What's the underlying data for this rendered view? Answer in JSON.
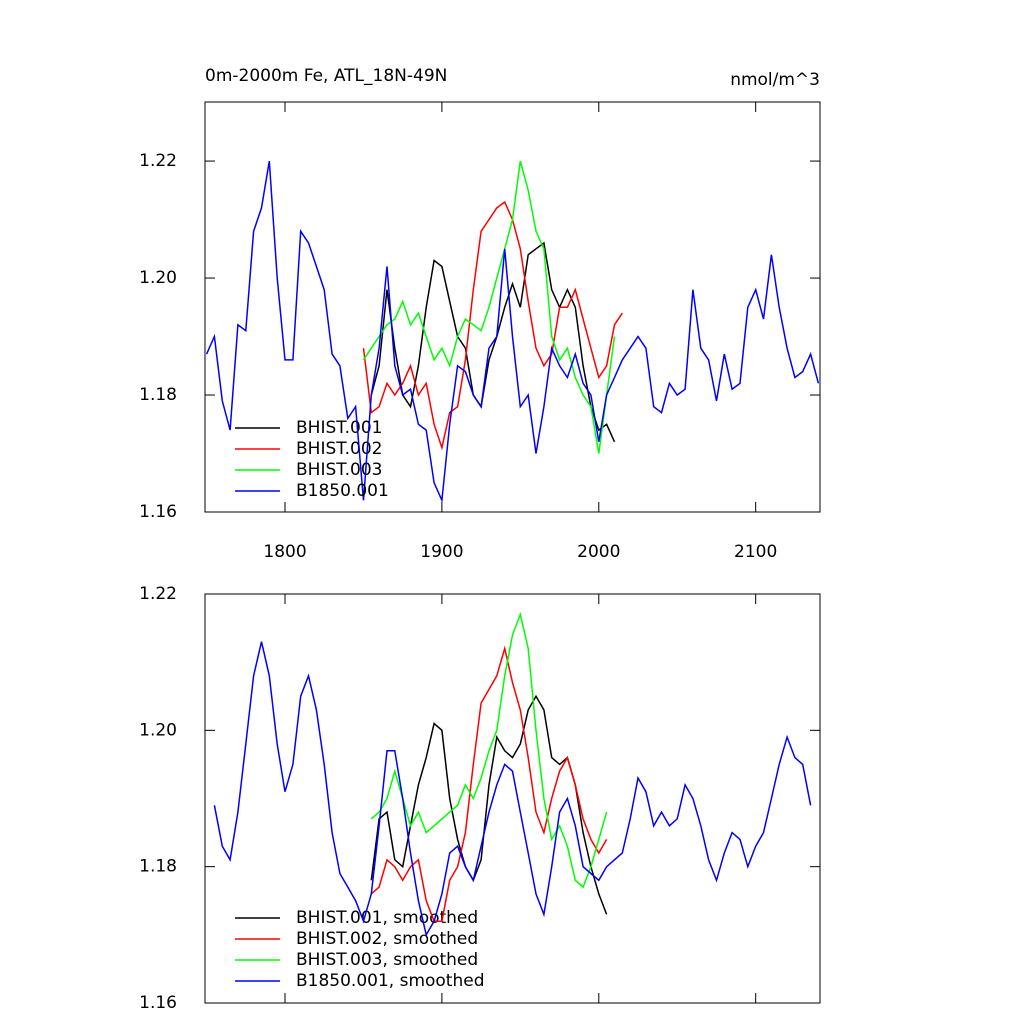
{
  "chart_data": [
    {
      "type": "line",
      "title": "0m-2000m Fe, ATL_18N-49N",
      "units": "nmol/m^3",
      "x": [
        1750,
        1755,
        1760,
        1765,
        1770,
        1775,
        1780,
        1785,
        1790,
        1795,
        1800,
        1805,
        1810,
        1815,
        1820,
        1825,
        1830,
        1835,
        1840,
        1845,
        1850,
        1855,
        1860,
        1865,
        1870,
        1875,
        1880,
        1885,
        1890,
        1895,
        1900,
        1905,
        1910,
        1915,
        1920,
        1925,
        1930,
        1935,
        1940,
        1945,
        1950,
        1955,
        1960,
        1965,
        1970,
        1975,
        1980,
        1985,
        1990,
        1995,
        2000,
        2005,
        2010,
        2015,
        2020,
        2025,
        2030,
        2035,
        2040,
        2045,
        2050,
        2055,
        2060,
        2065,
        2070,
        2075,
        2080,
        2085,
        2090,
        2095,
        2100,
        2105,
        2110,
        2115,
        2120,
        2125,
        2130,
        2135,
        2140
      ],
      "series": [
        {
          "name": "BHIST.001",
          "color": "#000000",
          "values": [
            null,
            null,
            null,
            null,
            null,
            null,
            null,
            null,
            null,
            null,
            null,
            null,
            null,
            null,
            null,
            null,
            null,
            null,
            null,
            null,
            null,
            1.18,
            1.185,
            1.198,
            1.188,
            1.18,
            1.178,
            1.185,
            1.195,
            1.203,
            1.202,
            1.196,
            1.19,
            1.188,
            1.18,
            1.178,
            1.186,
            1.19,
            1.195,
            1.199,
            1.195,
            1.204,
            1.205,
            1.206,
            1.198,
            1.195,
            1.198,
            1.195,
            1.185,
            1.178,
            1.174,
            1.175,
            1.172,
            null,
            null,
            null,
            null,
            null,
            null,
            null,
            null,
            null,
            null,
            null,
            null,
            null,
            null,
            null,
            null,
            null,
            null,
            null,
            null,
            null,
            null,
            null,
            null,
            null,
            null
          ]
        },
        {
          "name": "BHIST.002",
          "color": "#ff0000",
          "values": [
            null,
            null,
            null,
            null,
            null,
            null,
            null,
            null,
            null,
            null,
            null,
            null,
            null,
            null,
            null,
            null,
            null,
            null,
            null,
            null,
            1.188,
            1.177,
            1.178,
            1.182,
            1.18,
            1.182,
            1.185,
            1.18,
            1.182,
            1.175,
            1.171,
            1.177,
            1.178,
            1.186,
            1.198,
            1.208,
            1.21,
            1.212,
            1.213,
            1.21,
            1.205,
            1.196,
            1.188,
            1.185,
            1.187,
            1.195,
            1.195,
            1.198,
            1.193,
            1.188,
            1.183,
            1.185,
            1.192,
            1.194,
            null,
            null,
            null,
            null,
            null,
            null,
            null,
            null,
            null,
            null,
            null,
            null,
            null,
            null,
            null,
            null,
            null,
            null,
            null,
            null,
            null,
            null,
            null,
            null,
            null
          ]
        },
        {
          "name": "BHIST.003",
          "color": "#00ff00",
          "values": [
            null,
            null,
            null,
            null,
            null,
            null,
            null,
            null,
            null,
            null,
            null,
            null,
            null,
            null,
            null,
            null,
            null,
            null,
            null,
            null,
            1.186,
            1.188,
            1.19,
            1.192,
            1.193,
            1.196,
            1.192,
            1.194,
            1.19,
            1.186,
            1.188,
            1.185,
            1.19,
            1.193,
            1.192,
            1.191,
            1.195,
            1.2,
            1.205,
            1.21,
            1.22,
            1.215,
            1.208,
            1.205,
            1.19,
            1.186,
            1.188,
            1.183,
            1.18,
            1.178,
            1.17,
            1.18,
            1.19,
            null,
            null,
            null,
            null,
            null,
            null,
            null,
            null,
            null,
            null,
            null,
            null,
            null,
            null,
            null,
            null,
            null,
            null,
            null,
            null,
            null,
            null,
            null,
            null,
            null,
            null
          ]
        },
        {
          "name": "B1850.001",
          "color": "#0000ff",
          "values": [
            1.187,
            1.19,
            1.179,
            1.174,
            1.192,
            1.191,
            1.208,
            1.212,
            1.22,
            1.2,
            1.186,
            1.186,
            1.208,
            1.206,
            1.202,
            1.198,
            1.187,
            1.185,
            1.176,
            1.178,
            1.162,
            1.18,
            1.188,
            1.202,
            1.185,
            1.18,
            1.181,
            1.175,
            1.174,
            1.165,
            1.162,
            1.175,
            1.185,
            1.184,
            1.18,
            1.178,
            1.188,
            1.19,
            1.205,
            1.19,
            1.178,
            1.18,
            1.17,
            1.178,
            1.188,
            1.185,
            1.183,
            1.187,
            1.182,
            1.18,
            1.172,
            1.18,
            1.183,
            1.186,
            1.188,
            1.19,
            1.188,
            1.178,
            1.177,
            1.182,
            1.18,
            1.181,
            1.198,
            1.188,
            1.186,
            1.179,
            1.187,
            1.181,
            1.182,
            1.195,
            1.198,
            1.193,
            1.204,
            1.195,
            1.188,
            1.183,
            1.184,
            1.187,
            1.182
          ]
        }
      ],
      "xlim": [
        1749,
        2141
      ],
      "ylim": [
        1.16,
        1.2301
      ],
      "xticks": [
        1800,
        1900,
        2000,
        2100
      ],
      "yticks": [
        1.16,
        1.18,
        {
          "value": 1.2,
          "label": "1.20"
        },
        1.22
      ]
    },
    {
      "type": "line",
      "x": [
        1750,
        1755,
        1760,
        1765,
        1770,
        1775,
        1780,
        1785,
        1790,
        1795,
        1800,
        1805,
        1810,
        1815,
        1820,
        1825,
        1830,
        1835,
        1840,
        1845,
        1850,
        1855,
        1860,
        1865,
        1870,
        1875,
        1880,
        1885,
        1890,
        1895,
        1900,
        1905,
        1910,
        1915,
        1920,
        1925,
        1930,
        1935,
        1940,
        1945,
        1950,
        1955,
        1960,
        1965,
        1970,
        1975,
        1980,
        1985,
        1990,
        1995,
        2000,
        2005,
        2010,
        2015,
        2020,
        2025,
        2030,
        2035,
        2040,
        2045,
        2050,
        2055,
        2060,
        2065,
        2070,
        2075,
        2080,
        2085,
        2090,
        2095,
        2100,
        2105,
        2110,
        2115,
        2120,
        2125,
        2130,
        2135,
        2140
      ],
      "series": [
        {
          "name": "BHIST.001, smoothed",
          "color": "#000000",
          "values": [
            null,
            null,
            null,
            null,
            null,
            null,
            null,
            null,
            null,
            null,
            null,
            null,
            null,
            null,
            null,
            null,
            null,
            null,
            null,
            null,
            null,
            1.178,
            1.187,
            1.188,
            1.181,
            1.18,
            1.186,
            1.192,
            1.196,
            1.201,
            1.2,
            1.19,
            1.184,
            1.18,
            1.178,
            1.181,
            1.192,
            1.199,
            1.197,
            1.196,
            1.198,
            1.203,
            1.205,
            1.203,
            1.196,
            1.195,
            1.196,
            1.192,
            1.185,
            1.18,
            1.176,
            1.173,
            null,
            null,
            null,
            null,
            null,
            null,
            null,
            null,
            null,
            null,
            null,
            null,
            null,
            null,
            null,
            null,
            null,
            null,
            null,
            null,
            null,
            null,
            null,
            null,
            null,
            null,
            null
          ]
        },
        {
          "name": "BHIST.002, smoothed",
          "color": "#ff0000",
          "values": [
            null,
            null,
            null,
            null,
            null,
            null,
            null,
            null,
            null,
            null,
            null,
            null,
            null,
            null,
            null,
            null,
            null,
            null,
            null,
            null,
            null,
            1.176,
            1.177,
            1.181,
            1.18,
            1.178,
            1.18,
            1.181,
            1.175,
            1.172,
            1.172,
            1.178,
            1.18,
            1.185,
            1.195,
            1.204,
            1.206,
            1.208,
            1.212,
            1.207,
            1.203,
            1.196,
            1.188,
            1.185,
            1.19,
            1.194,
            1.196,
            1.192,
            1.187,
            1.184,
            1.182,
            1.184,
            null,
            null,
            null,
            null,
            null,
            null,
            null,
            null,
            null,
            null,
            null,
            null,
            null,
            null,
            null,
            null,
            null,
            null,
            null,
            null,
            null,
            null,
            null,
            null,
            null,
            null,
            null
          ]
        },
        {
          "name": "BHIST.003, smoothed",
          "color": "#00ff00",
          "values": [
            null,
            null,
            null,
            null,
            null,
            null,
            null,
            null,
            null,
            null,
            null,
            null,
            null,
            null,
            null,
            null,
            null,
            null,
            null,
            null,
            null,
            1.187,
            1.188,
            1.19,
            1.194,
            1.19,
            1.186,
            1.188,
            1.185,
            1.186,
            1.187,
            1.188,
            1.189,
            1.192,
            1.19,
            1.193,
            1.197,
            1.2,
            1.208,
            1.214,
            1.217,
            1.212,
            1.2,
            1.19,
            1.184,
            1.186,
            1.183,
            1.178,
            1.177,
            1.18,
            1.184,
            1.188,
            null,
            null,
            null,
            null,
            null,
            null,
            null,
            null,
            null,
            null,
            null,
            null,
            null,
            null,
            null,
            null,
            null,
            null,
            null,
            null,
            null,
            null,
            null,
            null,
            null,
            null,
            null
          ]
        },
        {
          "name": "B1850.001, smoothed",
          "color": "#0000ff",
          "values": [
            null,
            1.189,
            1.183,
            1.181,
            1.188,
            1.198,
            1.208,
            1.213,
            1.208,
            1.198,
            1.191,
            1.195,
            1.205,
            1.208,
            1.203,
            1.195,
            1.185,
            1.179,
            1.177,
            1.175,
            1.172,
            1.176,
            1.186,
            1.197,
            1.197,
            1.19,
            1.182,
            1.175,
            1.17,
            1.172,
            1.176,
            1.182,
            1.183,
            1.18,
            1.178,
            1.183,
            1.188,
            1.192,
            1.195,
            1.194,
            1.188,
            1.182,
            1.176,
            1.173,
            1.18,
            1.188,
            1.19,
            1.186,
            1.18,
            1.179,
            1.178,
            1.18,
            1.181,
            1.182,
            1.187,
            1.193,
            1.191,
            1.186,
            1.188,
            1.186,
            1.187,
            1.192,
            1.19,
            1.186,
            1.181,
            1.178,
            1.182,
            1.185,
            1.184,
            1.18,
            1.183,
            1.185,
            1.19,
            1.195,
            1.199,
            1.196,
            1.195,
            1.189,
            null
          ]
        }
      ],
      "xlim": [
        1749,
        2141
      ],
      "ylim": [
        1.16,
        1.22
      ],
      "xticks": [
        1800,
        1900,
        2000,
        2100
      ],
      "yticks": [
        1.16,
        1.18,
        {
          "value": 1.2,
          "label": "1.20"
        },
        1.22
      ]
    }
  ]
}
